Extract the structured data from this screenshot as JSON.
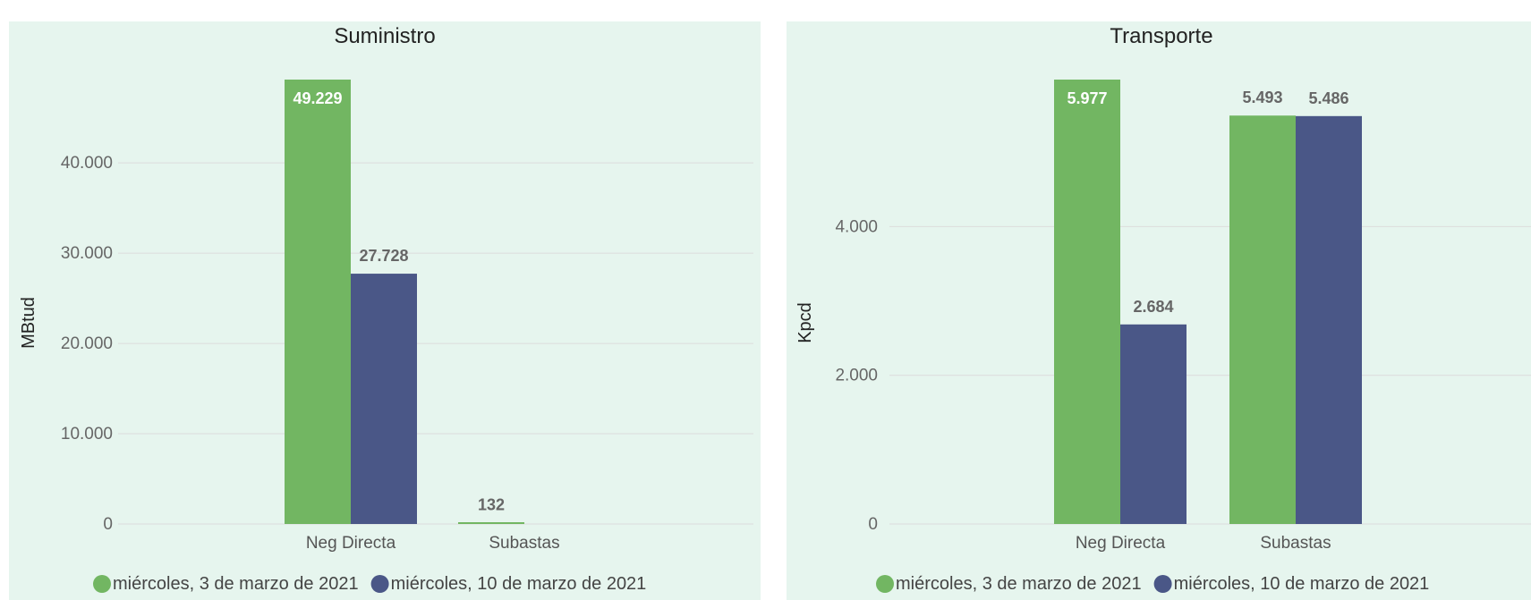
{
  "colors": {
    "series_1": "#72b662",
    "series_2": "#4a5787",
    "panel_bg": "#e6f5ee"
  },
  "legend": [
    "miércoles, 3 de marzo de 2021",
    "miércoles, 10 de marzo de 2021"
  ],
  "chart_data": [
    {
      "type": "bar",
      "title": "Suministro",
      "ylabel": "MBtud",
      "xlabel": "",
      "categories": [
        "Neg Directa",
        "Subastas"
      ],
      "series": [
        {
          "name": "miércoles, 3 de marzo de 2021",
          "values": [
            49229,
            132
          ],
          "labels": [
            "49.229",
            "132"
          ]
        },
        {
          "name": "miércoles, 10 de marzo de 2021",
          "values": [
            27728,
            null
          ],
          "labels": [
            "27.728",
            ""
          ]
        }
      ],
      "ylim": [
        0,
        49229
      ],
      "yticks": [
        0,
        10000,
        20000,
        30000,
        40000
      ],
      "ytick_labels": [
        "0",
        "10.000",
        "20.000",
        "30.000",
        "40.000"
      ],
      "grid": true,
      "legend_position": "bottom"
    },
    {
      "type": "bar",
      "title": "Transporte",
      "ylabel": "Kpcd",
      "xlabel": "",
      "categories": [
        "Neg Directa",
        "Subastas"
      ],
      "series": [
        {
          "name": "miércoles, 3 de marzo de 2021",
          "values": [
            5977,
            5493
          ],
          "labels": [
            "5.977",
            "5.493"
          ]
        },
        {
          "name": "miércoles, 10 de marzo de 2021",
          "values": [
            2684,
            5486
          ],
          "labels": [
            "2.684",
            "5.486"
          ]
        }
      ],
      "ylim": [
        0,
        5977
      ],
      "yticks": [
        0,
        2000,
        4000
      ],
      "ytick_labels": [
        "0",
        "2.000",
        "4.000"
      ],
      "grid": true,
      "legend_position": "bottom"
    }
  ]
}
